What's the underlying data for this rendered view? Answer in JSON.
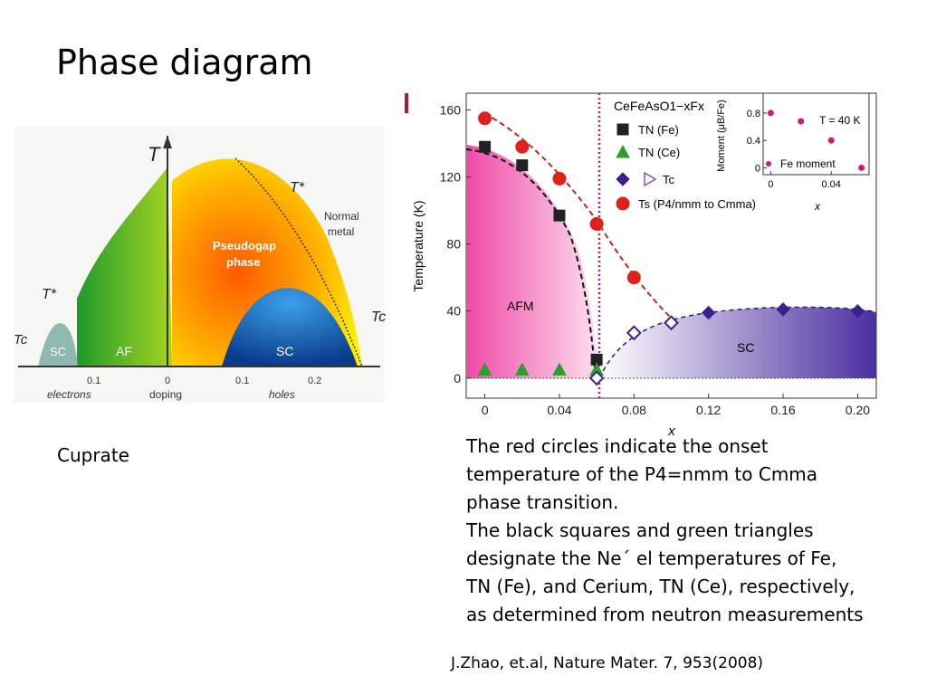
{
  "title": "Phase diagram",
  "figure_left": {
    "caption": "Cuprate",
    "labels": {
      "t": "T",
      "t_star_right": "T*",
      "t_star_left": "T*",
      "normal_metal_1": "Normal",
      "normal_metal_2": "metal",
      "pseudogap_1": "Pseudogap",
      "pseudogap_2": "phase",
      "tc_right": "Tc",
      "tc_left": "Tc",
      "sc_left": "SC",
      "af": "AF",
      "sc_right": "SC"
    },
    "ticks": [
      "0.1",
      "0",
      "0.1",
      "0.2"
    ],
    "axis_labels": [
      "electrons",
      "doping",
      "holes"
    ]
  },
  "figure_right": {
    "type": "scatter",
    "xlabel": "x",
    "ylabel": "Temperature (K)",
    "xlim": [
      -0.01,
      0.21
    ],
    "ylim": [
      -12,
      170
    ],
    "xticks": [
      0,
      0.04,
      0.08,
      0.12,
      0.16,
      {
        "value": 0.2,
        "label": "0.20"
      }
    ],
    "yticks": [
      0,
      40,
      80,
      120,
      160
    ],
    "legend_title": "CeFeAsO1−xFx",
    "regions": [
      "AFM",
      "SC"
    ],
    "series": [
      {
        "name": "TN (Fe)",
        "color": "#222222",
        "marker": "square",
        "x": [
          0,
          0.02,
          0.04,
          0.06
        ],
        "values": [
          138,
          127,
          97,
          11
        ]
      },
      {
        "name": "TN (Ce)",
        "color": "#2ca02c",
        "marker": "triangle",
        "x": [
          0,
          0.02,
          0.04,
          0.06
        ],
        "values": [
          5,
          5,
          5,
          5
        ]
      },
      {
        "name": "Tc",
        "color": "#3b1f8f",
        "marker": "diamond",
        "x": [
          0.06,
          0.08,
          0.1,
          0.12,
          0.16,
          0.2
        ],
        "values": [
          0,
          27,
          33,
          39,
          41,
          40
        ]
      },
      {
        "name": "Ts (P4/nmm to Cmma)",
        "color": "#e0201b",
        "marker": "circle",
        "x": [
          0,
          0.02,
          0.04,
          0.06,
          0.08
        ],
        "values": [
          155,
          138,
          119,
          92,
          60
        ]
      }
    ],
    "inset": {
      "ylabel": "Moment (μB/Fe)",
      "xlabel": "x",
      "note": "T = 40 K",
      "legend": "Fe moment",
      "color": "#d0187a",
      "xlim": [
        -0.005,
        0.065
      ],
      "ylim": [
        -0.1,
        1.09
      ],
      "xticks": [
        0,
        0.04
      ],
      "yticks": [
        0,
        0.4,
        0.8
      ],
      "x": [
        0,
        0.02,
        0.04,
        0.06
      ],
      "values": [
        0.8,
        0.68,
        0.4,
        0
      ]
    }
  },
  "text": {
    "lines": [
      "The red circles indicate the onset",
      "temperature of the P4=nmm to Cmma",
      "phase transition.",
      "The black squares and green triangles",
      "designate the Ne´ el temperatures of Fe,",
      "TN (Fe), and Cerium, TN (Ce), respectively,",
      "as determined from neutron measurements"
    ],
    "reference": "J.Zhao, et.al, Nature Mater. 7, 953(2008)"
  }
}
